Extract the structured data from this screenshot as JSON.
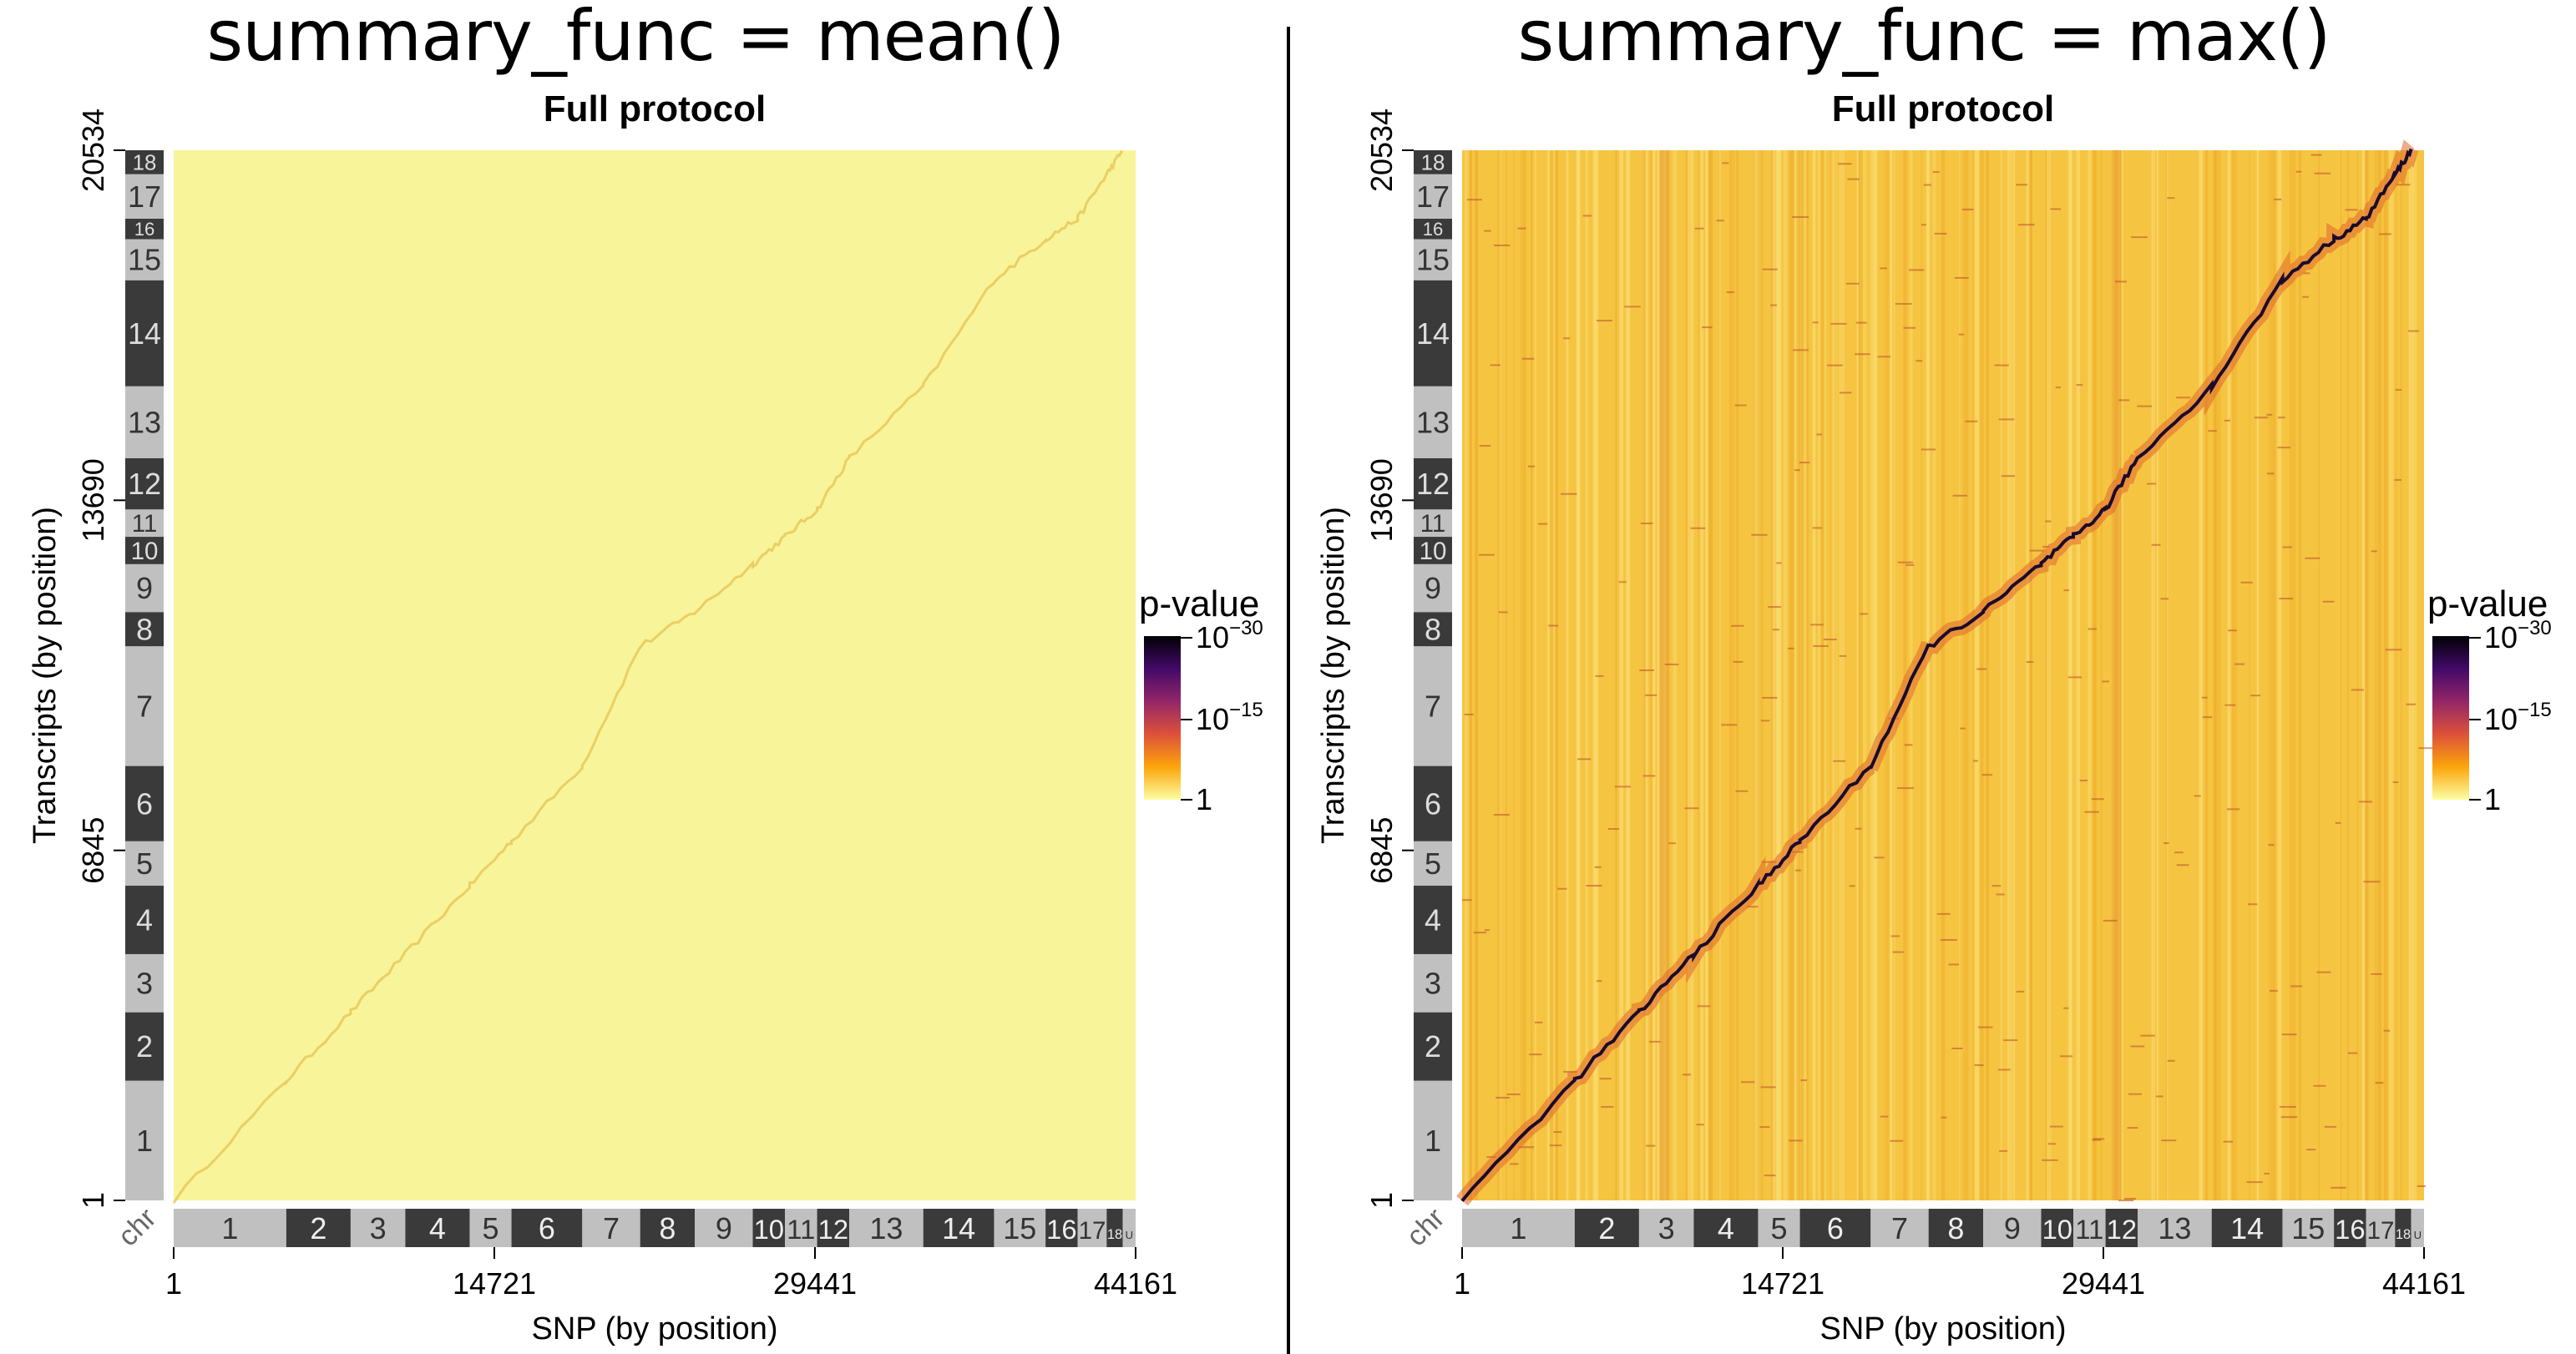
{
  "chart_data": [
    {
      "type": "heatmap",
      "figure_title": "summary_func = mean()",
      "title": "Full protocol",
      "xlabel": "SNP (by position)",
      "ylabel": "Transcripts (by position)",
      "x_ticks": [
        "1",
        "14721",
        "29441",
        "44161"
      ],
      "y_ticks": [
        "1",
        "6845",
        "13690",
        "20534"
      ],
      "xlim": [
        1,
        44161
      ],
      "ylim": [
        1,
        20534
      ],
      "chr_label": "chr",
      "x_chromosomes": [
        "1",
        "2",
        "3",
        "4",
        "5",
        "6",
        "7",
        "8",
        "9",
        "10",
        "11",
        "12",
        "13",
        "14",
        "15",
        "16",
        "17",
        "18",
        "U"
      ],
      "x_chr_weights": [
        3.5,
        2,
        1.7,
        2,
        1.3,
        2.2,
        1.8,
        1.7,
        1.8,
        1,
        1,
        1,
        2.3,
        2.2,
        1.6,
        1,
        0.9,
        0.5,
        0.4
      ],
      "y_chromosomes": [
        "1",
        "2",
        "3",
        "4",
        "5",
        "6",
        "7",
        "8",
        "9",
        "10",
        "11",
        "12",
        "13",
        "14",
        "15",
        "16",
        "17",
        "18"
      ],
      "y_chr_weights": [
        3.5,
        2,
        1.7,
        2,
        1.3,
        2.2,
        3.5,
        1,
        1.4,
        0.8,
        0.8,
        1.5,
        2.1,
        3.1,
        1.2,
        0.6,
        1.3,
        0.7
      ],
      "legend": {
        "title": "p-value",
        "ticks": [
          "10^-30",
          "10^-15",
          "1"
        ]
      },
      "signal": "weak",
      "background_color": "#f8f49a"
    },
    {
      "type": "heatmap",
      "figure_title": "summary_func = max()",
      "title": "Full protocol",
      "xlabel": "SNP (by position)",
      "ylabel": "Transcripts (by position)",
      "x_ticks": [
        "1",
        "14721",
        "29441",
        "44161"
      ],
      "y_ticks": [
        "1",
        "6845",
        "13690",
        "20534"
      ],
      "xlim": [
        1,
        44161
      ],
      "ylim": [
        1,
        20534
      ],
      "chr_label": "chr",
      "x_chromosomes": [
        "1",
        "2",
        "3",
        "4",
        "5",
        "6",
        "7",
        "8",
        "9",
        "10",
        "11",
        "12",
        "13",
        "14",
        "15",
        "16",
        "17",
        "18",
        "U"
      ],
      "x_chr_weights": [
        3.5,
        2,
        1.7,
        2,
        1.3,
        2.2,
        1.8,
        1.7,
        1.8,
        1,
        1,
        1,
        2.3,
        2.2,
        1.6,
        1,
        0.9,
        0.5,
        0.4
      ],
      "y_chromosomes": [
        "1",
        "2",
        "3",
        "4",
        "5",
        "6",
        "7",
        "8",
        "9",
        "10",
        "11",
        "12",
        "13",
        "14",
        "15",
        "16",
        "17",
        "18"
      ],
      "y_chr_weights": [
        3.5,
        2,
        1.7,
        2,
        1.3,
        2.2,
        3.5,
        1,
        1.4,
        0.8,
        0.8,
        1.5,
        2.1,
        3.1,
        1.2,
        0.6,
        1.3,
        0.7
      ],
      "legend": {
        "title": "p-value",
        "ticks": [
          "10^-30",
          "10^-15",
          "1"
        ]
      },
      "signal": "strong",
      "background_color": "#f5c542"
    }
  ],
  "colors": {
    "chr_light": "#c0c0c0",
    "chr_dark": "#3a3a3a",
    "scale": [
      "#000004",
      "#420a68",
      "#932667",
      "#dd513a",
      "#fca50a",
      "#fcffa4"
    ]
  }
}
